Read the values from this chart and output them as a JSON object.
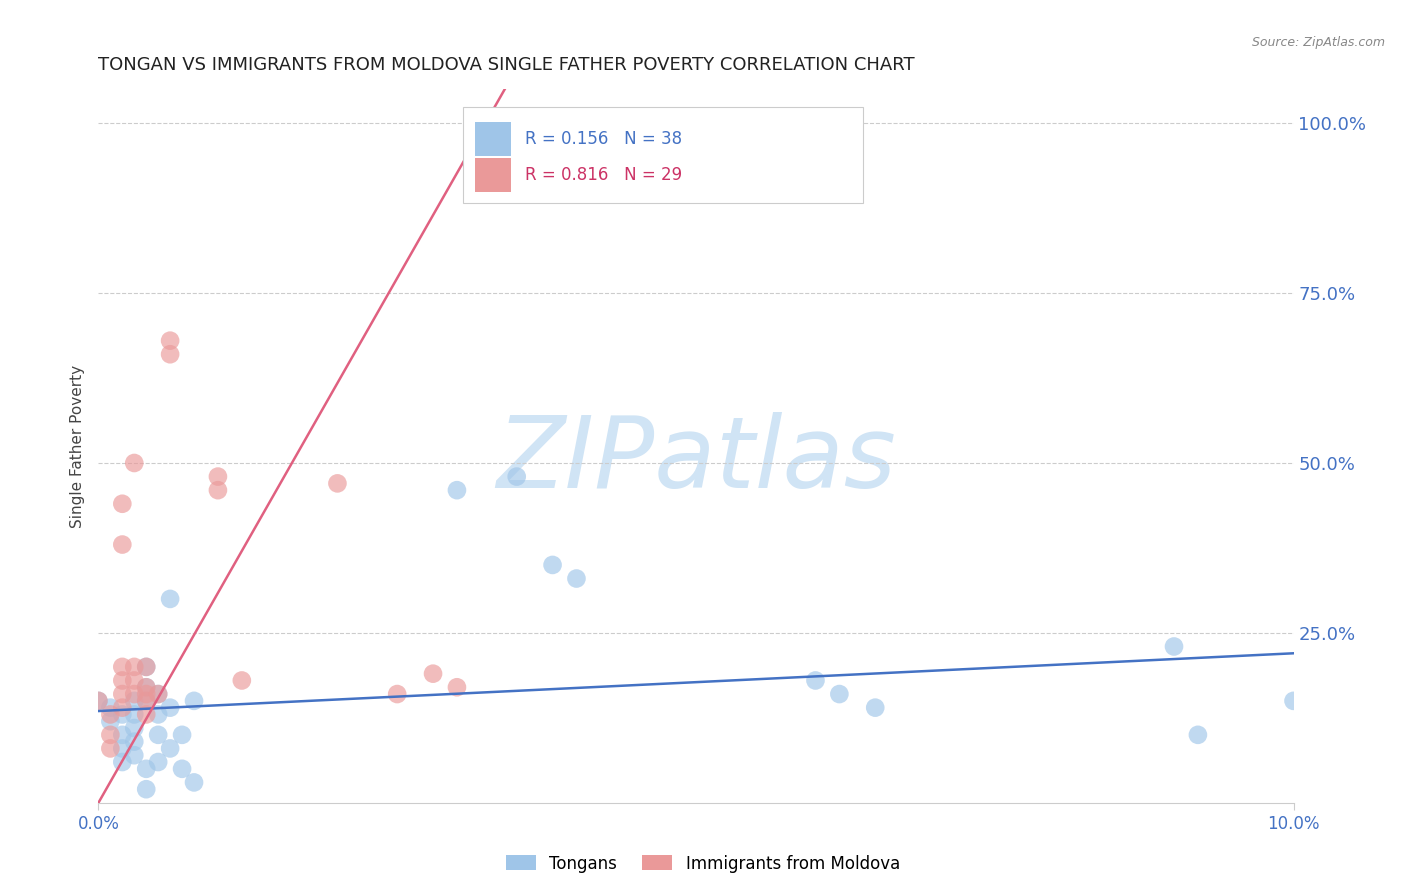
{
  "title": "TONGAN VS IMMIGRANTS FROM MOLDOVA SINGLE FATHER POVERTY CORRELATION CHART",
  "source": "Source: ZipAtlas.com",
  "ylabel": "Single Father Poverty",
  "legend_blue_r": "0.156",
  "legend_blue_n": "38",
  "legend_pink_r": "0.816",
  "legend_pink_n": "29",
  "legend_label_blue": "Tongans",
  "legend_label_pink": "Immigrants from Moldova",
  "blue_color": "#9fc5e8",
  "pink_color": "#ea9999",
  "line_blue": "#4472c4",
  "line_pink": "#e06080",
  "watermark": "ZIPatlas",
  "blue_dots": [
    [
      0.0,
      0.15
    ],
    [
      0.001,
      0.14
    ],
    [
      0.001,
      0.12
    ],
    [
      0.002,
      0.1
    ],
    [
      0.002,
      0.13
    ],
    [
      0.002,
      0.08
    ],
    [
      0.002,
      0.06
    ],
    [
      0.003,
      0.15
    ],
    [
      0.003,
      0.13
    ],
    [
      0.003,
      0.11
    ],
    [
      0.003,
      0.09
    ],
    [
      0.003,
      0.07
    ],
    [
      0.004,
      0.2
    ],
    [
      0.004,
      0.17
    ],
    [
      0.004,
      0.15
    ],
    [
      0.004,
      0.05
    ],
    [
      0.004,
      0.02
    ],
    [
      0.005,
      0.16
    ],
    [
      0.005,
      0.13
    ],
    [
      0.005,
      0.1
    ],
    [
      0.005,
      0.06
    ],
    [
      0.006,
      0.3
    ],
    [
      0.006,
      0.14
    ],
    [
      0.006,
      0.08
    ],
    [
      0.007,
      0.1
    ],
    [
      0.007,
      0.05
    ],
    [
      0.008,
      0.15
    ],
    [
      0.008,
      0.03
    ],
    [
      0.03,
      0.46
    ],
    [
      0.035,
      0.48
    ],
    [
      0.038,
      0.35
    ],
    [
      0.04,
      0.33
    ],
    [
      0.06,
      0.18
    ],
    [
      0.062,
      0.16
    ],
    [
      0.065,
      0.14
    ],
    [
      0.09,
      0.23
    ],
    [
      0.092,
      0.1
    ],
    [
      0.1,
      0.15
    ]
  ],
  "pink_dots": [
    [
      0.0,
      0.15
    ],
    [
      0.001,
      0.13
    ],
    [
      0.001,
      0.1
    ],
    [
      0.001,
      0.08
    ],
    [
      0.002,
      0.44
    ],
    [
      0.002,
      0.38
    ],
    [
      0.002,
      0.2
    ],
    [
      0.002,
      0.18
    ],
    [
      0.002,
      0.16
    ],
    [
      0.002,
      0.14
    ],
    [
      0.003,
      0.5
    ],
    [
      0.003,
      0.2
    ],
    [
      0.003,
      0.18
    ],
    [
      0.003,
      0.16
    ],
    [
      0.004,
      0.2
    ],
    [
      0.004,
      0.17
    ],
    [
      0.004,
      0.16
    ],
    [
      0.004,
      0.15
    ],
    [
      0.004,
      0.13
    ],
    [
      0.005,
      0.16
    ],
    [
      0.006,
      0.68
    ],
    [
      0.006,
      0.66
    ],
    [
      0.01,
      0.48
    ],
    [
      0.01,
      0.46
    ],
    [
      0.012,
      0.18
    ],
    [
      0.02,
      0.47
    ],
    [
      0.025,
      0.16
    ],
    [
      0.028,
      0.19
    ],
    [
      0.03,
      0.17
    ]
  ],
  "xlim": [
    0.0,
    0.1
  ],
  "ylim": [
    0.0,
    1.05
  ],
  "blue_line_x": [
    0.0,
    0.1
  ],
  "blue_line_y": [
    0.135,
    0.22
  ],
  "pink_line_x": [
    0.0,
    0.034
  ],
  "pink_line_y": [
    0.0,
    1.05
  ],
  "title_color": "#222222",
  "tick_color": "#4472c4",
  "source_color": "#888888",
  "grid_color": "#cccccc",
  "watermark_color": "#d0e4f5"
}
